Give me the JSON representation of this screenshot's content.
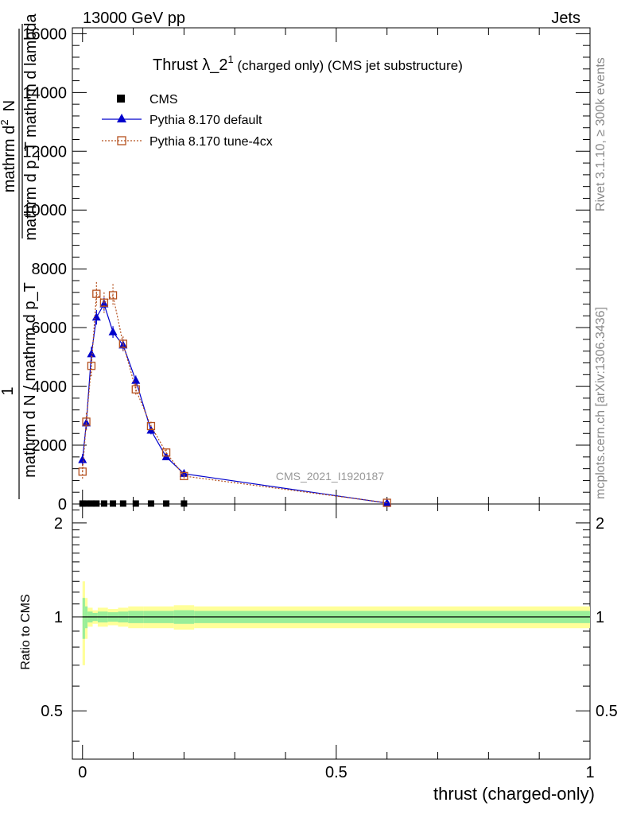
{
  "header": {
    "left": "13000 GeV pp",
    "right": "Jets"
  },
  "side": {
    "rivet": "Rivet 3.1.10, ≥ 300k events",
    "mcplots": "mcplots.cern.ch [arXiv:1306.3436]"
  },
  "chart_data": {
    "type": "line",
    "title_main": "Thrust λ_2",
    "title_sup": "1",
    "title_rest": " (charged only) (CMS jet substructure)",
    "watermark": "CMS_2021_I1920187",
    "xlabel": "thrust (charged-only)",
    "ylabel_numer_top": "mathrm d",
    "ylabel_numer_sup": "2",
    "ylabel_numer_bottom": "N",
    "ylabel_denom": "mathrm d p_T mathrm d lambda",
    "ylabel_frac_num": "1",
    "ylabel_frac_den": "mathrm d N / mathrm d p_T",
    "ratio_ylabel": "Ratio to CMS",
    "xlim": [
      -0.02,
      1.0
    ],
    "ylim": [
      0,
      16200
    ],
    "ratio_ylim": [
      0.35,
      2.3
    ],
    "x_ticks": [
      "0",
      "0.5",
      "1"
    ],
    "x_tick_values": [
      0,
      0.5,
      1
    ],
    "y_ticks": [
      "0",
      "2000",
      "4000",
      "6000",
      "8000",
      "10000",
      "12000",
      "14000",
      "16000"
    ],
    "y_tick_values": [
      0,
      2000,
      4000,
      6000,
      8000,
      10000,
      12000,
      14000,
      16000
    ],
    "ratio_ticks": [
      "0.5",
      "1",
      "2"
    ],
    "ratio_tick_values": [
      0.5,
      1,
      2
    ],
    "legend": [
      "CMS",
      "Pythia 8.170 default",
      "Pythia 8.170 tune-4cx"
    ],
    "series": [
      {
        "name": "CMS",
        "color": "#000000",
        "x": [
          0.0,
          0.0075,
          0.0175,
          0.0275,
          0.0425,
          0.06,
          0.08,
          0.105,
          0.135,
          0.165,
          0.2
        ],
        "y": [
          15,
          15,
          15,
          15,
          15,
          15,
          15,
          15,
          15,
          15,
          15
        ]
      },
      {
        "name": "Pythia 8.170 default",
        "color": "#0000cc",
        "x": [
          0.0,
          0.0075,
          0.0175,
          0.0275,
          0.0425,
          0.06,
          0.08,
          0.105,
          0.135,
          0.165,
          0.2,
          0.6
        ],
        "y": [
          1500,
          2750,
          5100,
          6350,
          6800,
          5850,
          5400,
          4200,
          2500,
          1600,
          1030,
          30
        ],
        "err": [
          200,
          220,
          250,
          250,
          220,
          200,
          200,
          170,
          130,
          100,
          80,
          10
        ]
      },
      {
        "name": "Pythia 8.170 tune-4cx",
        "color": "#b5501e",
        "x": [
          0.0,
          0.0075,
          0.0175,
          0.0275,
          0.0425,
          0.06,
          0.08,
          0.105,
          0.135,
          0.165,
          0.2,
          0.6
        ],
        "y": [
          1100,
          2800,
          4700,
          7150,
          6850,
          7100,
          5450,
          3900,
          2650,
          1750,
          950,
          40
        ],
        "err": [
          250,
          300,
          350,
          400,
          350,
          380,
          250,
          200,
          150,
          110,
          80,
          10
        ]
      }
    ],
    "ratio_bands": {
      "x_edges": [
        0.0,
        0.005,
        0.01,
        0.02,
        0.03,
        0.05,
        0.07,
        0.09,
        0.12,
        0.15,
        0.18,
        0.22,
        1.0
      ],
      "yellow_half": [
        0.3,
        0.15,
        0.07,
        0.05,
        0.07,
        0.06,
        0.07,
        0.08,
        0.08,
        0.08,
        0.09,
        0.08
      ],
      "green_half": [
        0.15,
        0.08,
        0.04,
        0.03,
        0.04,
        0.035,
        0.04,
        0.045,
        0.045,
        0.045,
        0.05,
        0.045
      ]
    }
  }
}
